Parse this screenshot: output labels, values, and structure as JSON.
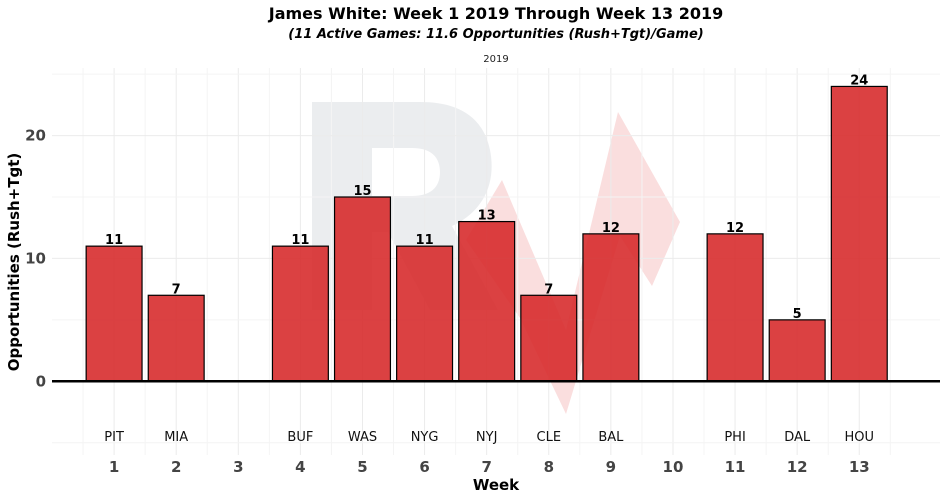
{
  "chart_data": {
    "type": "bar",
    "title": "James White: Week 1 2019 Through Week 13 2019",
    "subtitle": "(11 Active Games: 11.6 Opportunities (Rush+Tgt)/Game)",
    "facet_label": "2019",
    "xlabel": "Week",
    "ylabel": "Opportunities (Rush+Tgt)",
    "x_ticks": [
      1,
      2,
      3,
      4,
      5,
      6,
      7,
      8,
      9,
      10,
      11,
      12,
      13
    ],
    "y_ticks": [
      0,
      10,
      20
    ],
    "ylim": [
      -6,
      25.5
    ],
    "xlim": [
      0,
      14.3
    ],
    "grid": true,
    "bar_color": "#d62728",
    "series": [
      {
        "points": [
          {
            "week": 1,
            "value": 11,
            "opponent": "PIT"
          },
          {
            "week": 2,
            "value": 7,
            "opponent": "MIA"
          },
          {
            "week": 4,
            "value": 11,
            "opponent": "BUF"
          },
          {
            "week": 5,
            "value": 15,
            "opponent": "WAS"
          },
          {
            "week": 6,
            "value": 11,
            "opponent": "NYG"
          },
          {
            "week": 7,
            "value": 13,
            "opponent": "NYJ"
          },
          {
            "week": 8,
            "value": 7,
            "opponent": "CLE"
          },
          {
            "week": 9,
            "value": 12,
            "opponent": "BAL"
          },
          {
            "week": 11,
            "value": 12,
            "opponent": "PHI"
          },
          {
            "week": 12,
            "value": 5,
            "opponent": "DAL"
          },
          {
            "week": 13,
            "value": 24,
            "opponent": "HOU"
          }
        ]
      }
    ]
  }
}
